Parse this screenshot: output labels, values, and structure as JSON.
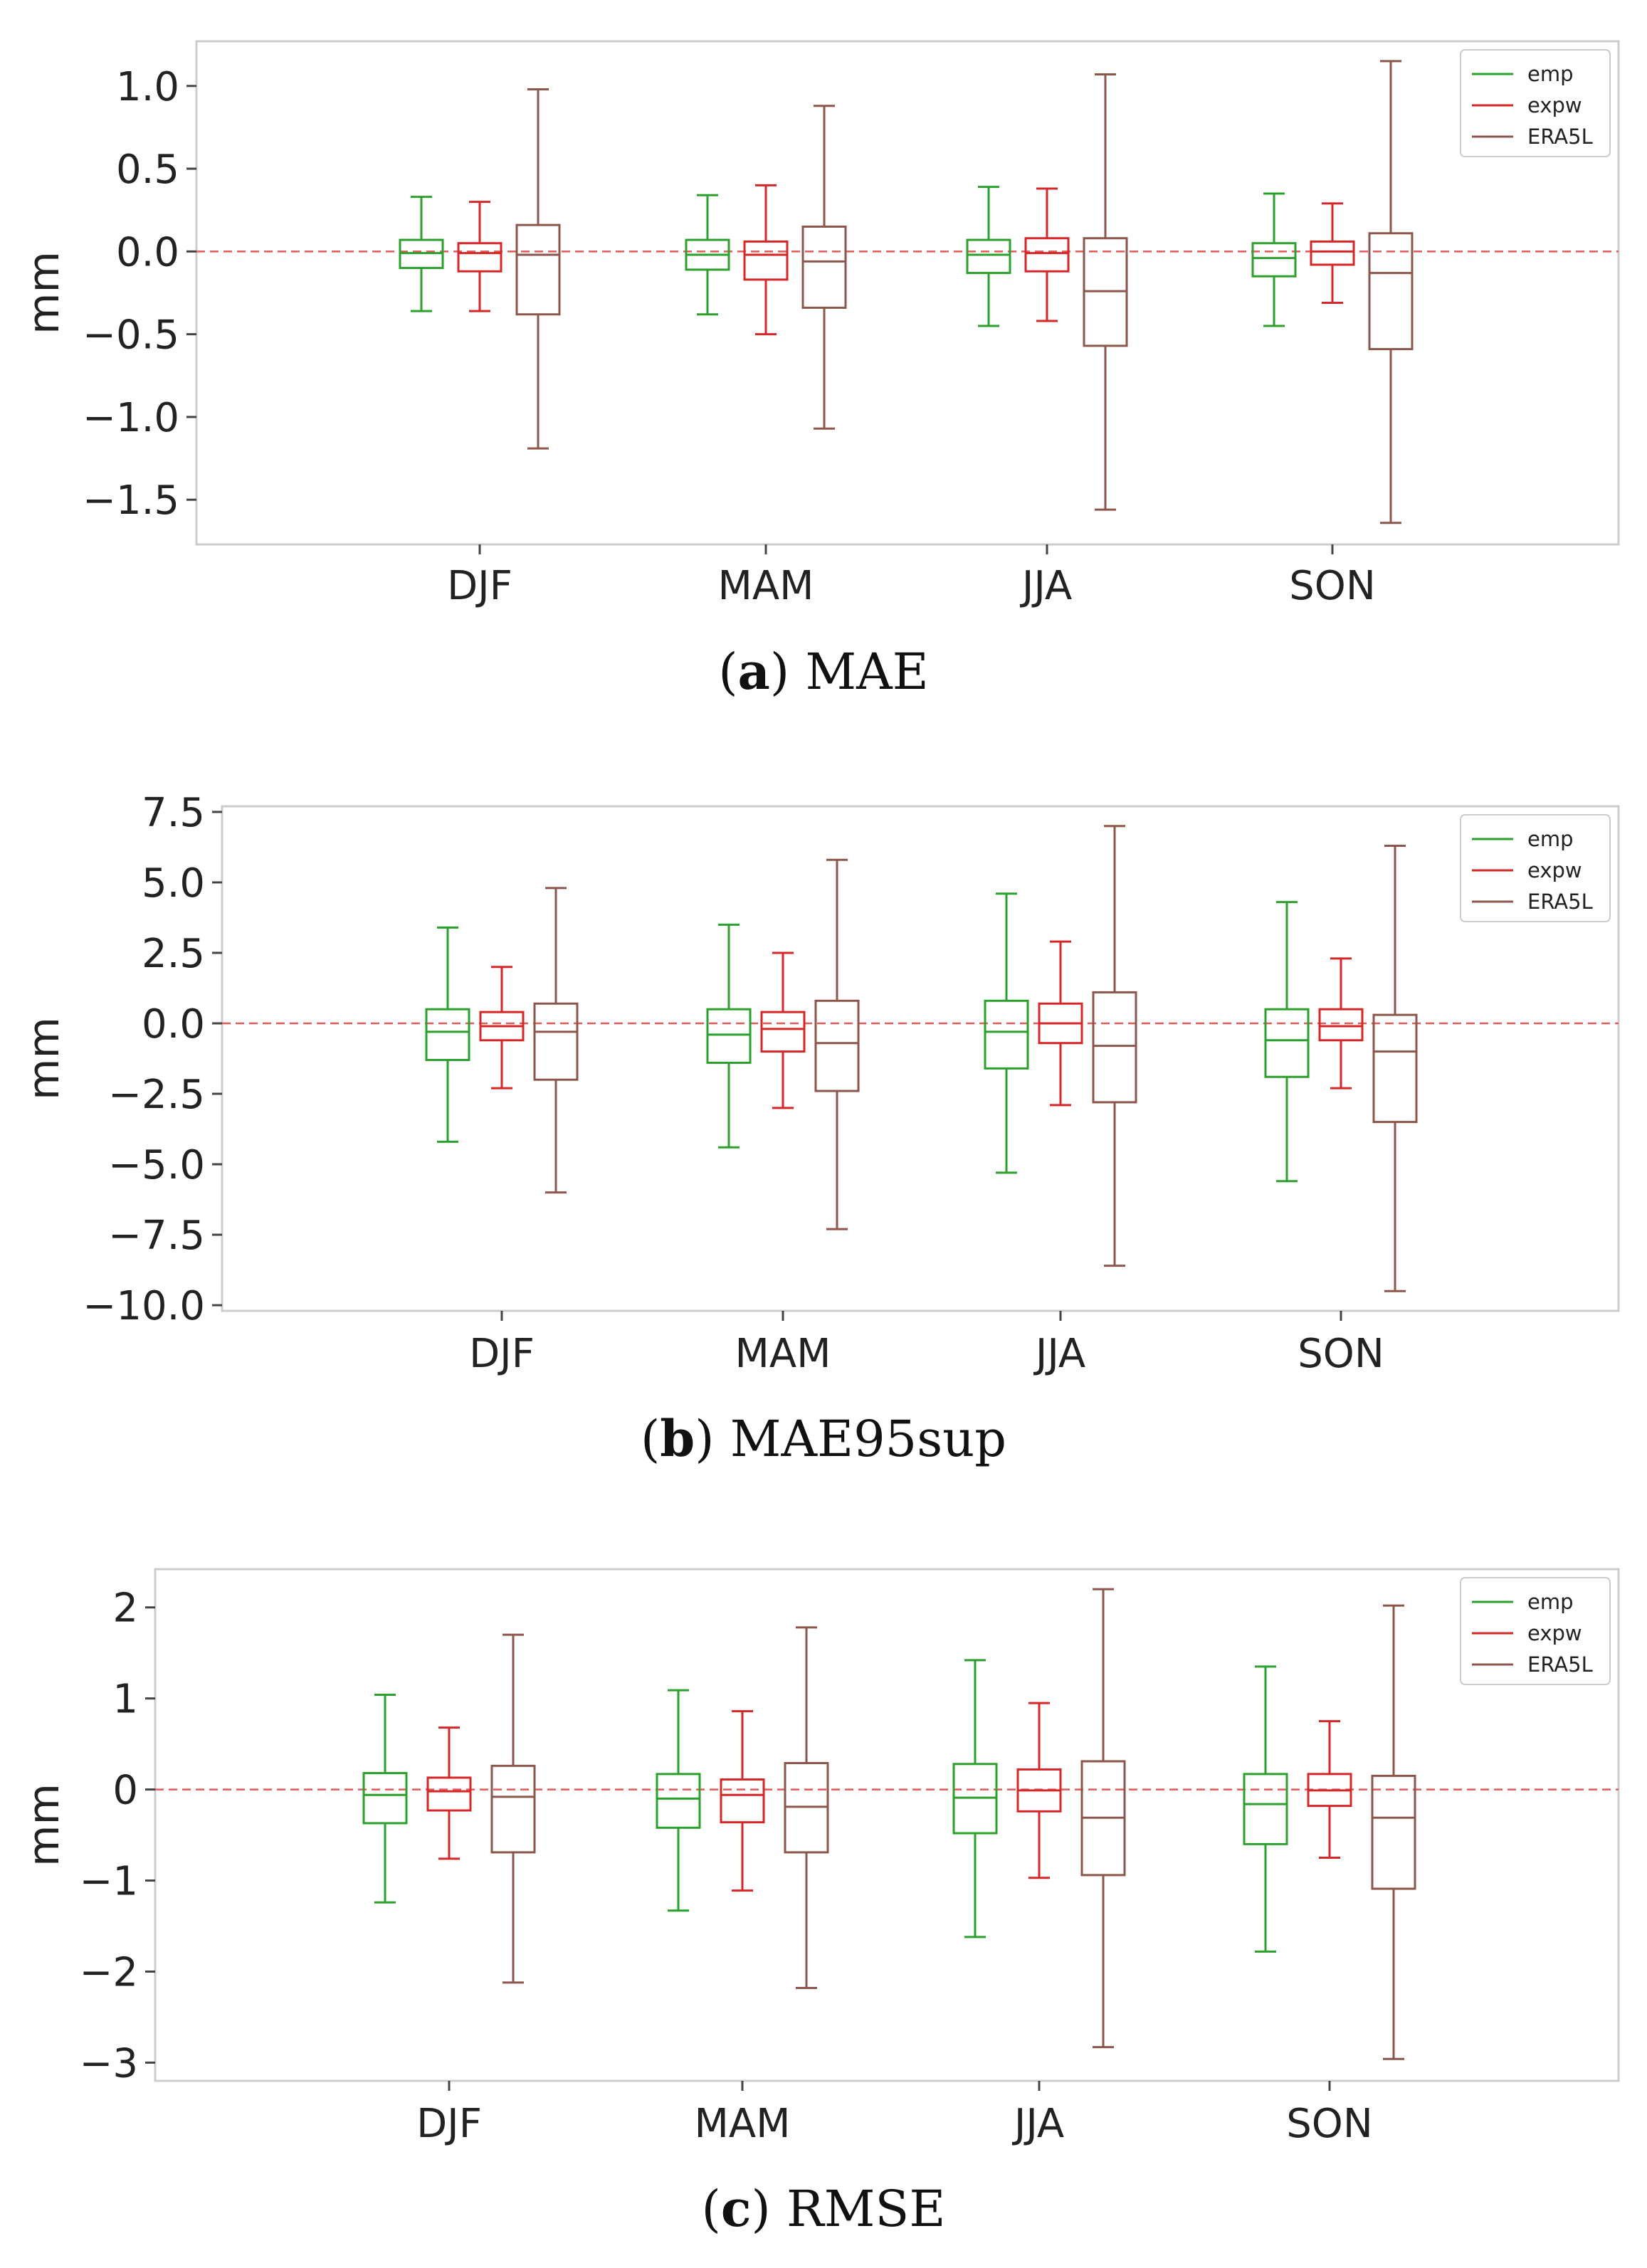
{
  "chart_data": [
    {
      "type": "box",
      "panel_letter": "a",
      "caption": "MAE",
      "ylabel": "mm",
      "ylim": [
        -1.77,
        1.27
      ],
      "yticks": [
        1.0,
        0.5,
        0.0,
        -0.5,
        -1.0,
        -1.5
      ],
      "ytick_labels": [
        "1.0",
        "0.5",
        "0.0",
        "−0.5",
        "−1.0",
        "−1.5"
      ],
      "reference_line": 0,
      "categories": [
        "DJF",
        "MAM",
        "JJA",
        "SON"
      ],
      "legend": {
        "position": "top-right",
        "entries": [
          "emp",
          "expw",
          "ERA5L"
        ]
      },
      "series": [
        {
          "name": "emp",
          "color": "#2ca02c",
          "boxes": [
            {
              "whislo": -0.36,
              "q1": -0.1,
              "median": -0.01,
              "q3": 0.07,
              "whishi": 0.33
            },
            {
              "whislo": -0.38,
              "q1": -0.11,
              "median": -0.02,
              "q3": 0.07,
              "whishi": 0.34
            },
            {
              "whislo": -0.45,
              "q1": -0.13,
              "median": -0.02,
              "q3": 0.07,
              "whishi": 0.39
            },
            {
              "whislo": -0.45,
              "q1": -0.15,
              "median": -0.04,
              "q3": 0.05,
              "whishi": 0.35
            }
          ]
        },
        {
          "name": "expw",
          "color": "#d62728",
          "boxes": [
            {
              "whislo": -0.36,
              "q1": -0.12,
              "median": -0.01,
              "q3": 0.05,
              "whishi": 0.3
            },
            {
              "whislo": -0.5,
              "q1": -0.17,
              "median": -0.02,
              "q3": 0.06,
              "whishi": 0.4
            },
            {
              "whislo": -0.42,
              "q1": -0.12,
              "median": -0.01,
              "q3": 0.08,
              "whishi": 0.38
            },
            {
              "whislo": -0.31,
              "q1": -0.08,
              "median": 0.0,
              "q3": 0.06,
              "whishi": 0.29
            }
          ]
        },
        {
          "name": "ERA5L",
          "color": "#8c564b",
          "boxes": [
            {
              "whislo": -1.19,
              "q1": -0.38,
              "median": -0.02,
              "q3": 0.16,
              "whishi": 0.98
            },
            {
              "whislo": -1.07,
              "q1": -0.34,
              "median": -0.06,
              "q3": 0.15,
              "whishi": 0.88
            },
            {
              "whislo": -1.56,
              "q1": -0.57,
              "median": -0.24,
              "q3": 0.08,
              "whishi": 1.07
            },
            {
              "whislo": -1.64,
              "q1": -0.59,
              "median": -0.13,
              "q3": 0.11,
              "whishi": 1.15
            }
          ]
        }
      ]
    },
    {
      "type": "box",
      "panel_letter": "b",
      "caption": "MAE95sup",
      "ylabel": "mm",
      "ylim": [
        -10.2,
        7.7
      ],
      "yticks": [
        7.5,
        5.0,
        2.5,
        0.0,
        -2.5,
        -5.0,
        -7.5,
        -10.0
      ],
      "ytick_labels": [
        "7.5",
        "5.0",
        "2.5",
        "0.0",
        "−2.5",
        "−5.0",
        "−7.5",
        "−10.0"
      ],
      "reference_line": 0,
      "categories": [
        "DJF",
        "MAM",
        "JJA",
        "SON"
      ],
      "legend": {
        "position": "top-right",
        "entries": [
          "emp",
          "expw",
          "ERA5L"
        ]
      },
      "series": [
        {
          "name": "emp",
          "color": "#2ca02c",
          "boxes": [
            {
              "whislo": -4.2,
              "q1": -1.3,
              "median": -0.3,
              "q3": 0.5,
              "whishi": 3.4
            },
            {
              "whislo": -4.4,
              "q1": -1.4,
              "median": -0.4,
              "q3": 0.5,
              "whishi": 3.5
            },
            {
              "whislo": -5.3,
              "q1": -1.6,
              "median": -0.3,
              "q3": 0.8,
              "whishi": 4.6
            },
            {
              "whislo": -5.6,
              "q1": -1.9,
              "median": -0.6,
              "q3": 0.5,
              "whishi": 4.3
            }
          ]
        },
        {
          "name": "expw",
          "color": "#d62728",
          "boxes": [
            {
              "whislo": -2.3,
              "q1": -0.6,
              "median": -0.1,
              "q3": 0.4,
              "whishi": 2.0
            },
            {
              "whislo": -3.0,
              "q1": -1.0,
              "median": -0.2,
              "q3": 0.4,
              "whishi": 2.5
            },
            {
              "whislo": -2.9,
              "q1": -0.7,
              "median": 0.0,
              "q3": 0.7,
              "whishi": 2.9
            },
            {
              "whislo": -2.3,
              "q1": -0.6,
              "median": -0.1,
              "q3": 0.5,
              "whishi": 2.3
            }
          ]
        },
        {
          "name": "ERA5L",
          "color": "#8c564b",
          "boxes": [
            {
              "whislo": -6.0,
              "q1": -2.0,
              "median": -0.3,
              "q3": 0.7,
              "whishi": 4.8
            },
            {
              "whislo": -7.3,
              "q1": -2.4,
              "median": -0.7,
              "q3": 0.8,
              "whishi": 5.8
            },
            {
              "whislo": -8.6,
              "q1": -2.8,
              "median": -0.8,
              "q3": 1.1,
              "whishi": 7.0
            },
            {
              "whislo": -9.5,
              "q1": -3.5,
              "median": -1.0,
              "q3": 0.3,
              "whishi": 6.3
            }
          ]
        }
      ]
    },
    {
      "type": "box",
      "panel_letter": "c",
      "caption": "RMSE",
      "ylabel": "mm",
      "ylim": [
        -3.2,
        2.42
      ],
      "yticks": [
        2,
        1,
        0,
        -1,
        -2,
        -3
      ],
      "ytick_labels": [
        "2",
        "1",
        "0",
        "−1",
        "−2",
        "−3"
      ],
      "reference_line": 0,
      "categories": [
        "DJF",
        "MAM",
        "JJA",
        "SON"
      ],
      "legend": {
        "position": "top-right",
        "entries": [
          "emp",
          "expw",
          "ERA5L"
        ]
      },
      "series": [
        {
          "name": "emp",
          "color": "#2ca02c",
          "boxes": [
            {
              "whislo": -1.24,
              "q1": -0.37,
              "median": -0.06,
              "q3": 0.18,
              "whishi": 1.04
            },
            {
              "whislo": -1.33,
              "q1": -0.42,
              "median": -0.1,
              "q3": 0.17,
              "whishi": 1.09
            },
            {
              "whislo": -1.62,
              "q1": -0.48,
              "median": -0.09,
              "q3": 0.28,
              "whishi": 1.42
            },
            {
              "whislo": -1.78,
              "q1": -0.6,
              "median": -0.16,
              "q3": 0.17,
              "whishi": 1.35
            }
          ]
        },
        {
          "name": "expw",
          "color": "#d62728",
          "boxes": [
            {
              "whislo": -0.76,
              "q1": -0.23,
              "median": -0.02,
              "q3": 0.13,
              "whishi": 0.68
            },
            {
              "whislo": -1.11,
              "q1": -0.36,
              "median": -0.06,
              "q3": 0.11,
              "whishi": 0.86
            },
            {
              "whislo": -0.97,
              "q1": -0.24,
              "median": -0.01,
              "q3": 0.22,
              "whishi": 0.95
            },
            {
              "whislo": -0.75,
              "q1": -0.18,
              "median": -0.01,
              "q3": 0.17,
              "whishi": 0.75
            }
          ]
        },
        {
          "name": "ERA5L",
          "color": "#8c564b",
          "boxes": [
            {
              "whislo": -2.12,
              "q1": -0.69,
              "median": -0.08,
              "q3": 0.26,
              "whishi": 1.7
            },
            {
              "whislo": -2.18,
              "q1": -0.69,
              "median": -0.19,
              "q3": 0.29,
              "whishi": 1.78
            },
            {
              "whislo": -2.83,
              "q1": -0.94,
              "median": -0.31,
              "q3": 0.31,
              "whishi": 2.2
            },
            {
              "whislo": -2.96,
              "q1": -1.09,
              "median": -0.31,
              "q3": 0.15,
              "whishi": 2.02
            }
          ]
        }
      ]
    }
  ]
}
